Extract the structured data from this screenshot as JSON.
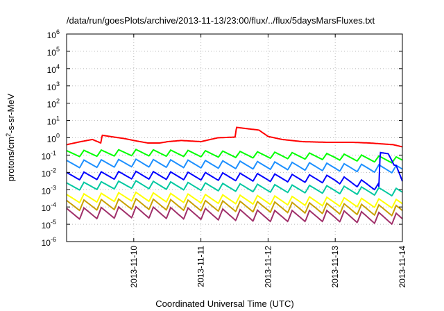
{
  "chart_data": {
    "type": "line",
    "title": "/data/run/goesPlots/archive/2013-11-13/23:00/flux/../flux/5daysMarsFluxes.txt",
    "xlabel": "Coordinated Universal Time (UTC)",
    "ylabel_base": "protons/cm",
    "ylabel_sup": "2",
    "ylabel_rest": "-s-sr-MeV",
    "y_scale": "log",
    "ylim": [
      1e-06,
      1000000.0
    ],
    "xlim": [
      "2013-11-09T00:00",
      "2013-11-14T00:00"
    ],
    "grid": true,
    "y_ticks": [
      {
        "value": 1e-06,
        "base": "10",
        "exp": "-6"
      },
      {
        "value": 1e-05,
        "base": "10",
        "exp": "-5"
      },
      {
        "value": 0.0001,
        "base": "10",
        "exp": "-4"
      },
      {
        "value": 0.001,
        "base": "10",
        "exp": "-3"
      },
      {
        "value": 0.01,
        "base": "10",
        "exp": "-2"
      },
      {
        "value": 0.1,
        "base": "10",
        "exp": "-1"
      },
      {
        "value": 1.0,
        "base": "10",
        "exp": "0"
      },
      {
        "value": 10.0,
        "base": "10",
        "exp": "1"
      },
      {
        "value": 100.0,
        "base": "10",
        "exp": "2"
      },
      {
        "value": 1000.0,
        "base": "10",
        "exp": "3"
      },
      {
        "value": 10000.0,
        "base": "10",
        "exp": "4"
      },
      {
        "value": 100000.0,
        "base": "10",
        "exp": "5"
      },
      {
        "value": 1000000.0,
        "base": "10",
        "exp": "6"
      }
    ],
    "x_ticks": [
      {
        "value": "2013-11-10T00:00",
        "label": "2013-11-10"
      },
      {
        "value": "2013-11-11T00:00",
        "label": "2013-11-11"
      },
      {
        "value": "2013-11-12T00:00",
        "label": "2013-11-12"
      },
      {
        "value": "2013-11-13T00:00",
        "label": "2013-11-13"
      },
      {
        "value": "2013-11-14T00:00",
        "label": "2013-11-14"
      }
    ],
    "series": [
      {
        "color": "#ff0000",
        "x": [
          "2013-11-09T00:00",
          "2013-11-09T05:02",
          "2013-11-09T09:14",
          "2013-11-09T12:14",
          "2013-11-09T12:43",
          "2013-11-09T16:58",
          "2013-11-09T20:44",
          "2013-11-10T00:00",
          "2013-11-10T05:02",
          "2013-11-10T09:14",
          "2013-11-10T12:14",
          "2013-11-10T16:58",
          "2013-11-11T00:00",
          "2013-11-11T06:00",
          "2013-11-11T12:14",
          "2013-11-11T12:43",
          "2013-11-11T16:58",
          "2013-11-11T20:44",
          "2013-11-12T00:00",
          "2013-11-12T05:02",
          "2013-11-12T12:14",
          "2013-11-12T20:44",
          "2013-11-13T00:00",
          "2013-11-13T06:00",
          "2013-11-13T12:14",
          "2013-11-13T20:44",
          "2013-11-14T00:00"
        ],
        "values": [
          0.4,
          0.6,
          0.8,
          0.5,
          1.4,
          1.1,
          0.9,
          0.7,
          0.5,
          0.5,
          0.6,
          0.7,
          0.6,
          1.0,
          1.1,
          4.0,
          3.3,
          2.8,
          1.2,
          0.8,
          0.6,
          0.55,
          0.55,
          0.55,
          0.5,
          0.4,
          0.3
        ]
      },
      {
        "color": "#00ff00",
        "x": [
          "2013-11-09T00:00",
          "2013-11-10T00:00",
          "2013-11-11T00:00",
          "2013-11-12T00:00",
          "2013-11-13T00:00",
          "2013-11-14T00:00"
        ],
        "values": [
          0.12,
          0.14,
          0.12,
          0.1,
          0.08,
          0.05
        ]
      },
      {
        "color": "#1e90ff",
        "x": [
          "2013-11-09T00:00",
          "2013-11-10T00:00",
          "2013-11-11T00:00",
          "2013-11-12T00:00",
          "2013-11-13T00:00",
          "2013-11-14T00:00"
        ],
        "values": [
          0.03,
          0.035,
          0.03,
          0.025,
          0.02,
          0.015
        ]
      },
      {
        "color": "#0000ff",
        "x": [
          "2013-11-09T00:00",
          "2013-11-10T00:00",
          "2013-11-11T00:00",
          "2013-11-12T00:00",
          "2013-11-13T00:00",
          "2013-11-13T15:36",
          "2013-11-13T16:05",
          "2013-11-13T18:58",
          "2013-11-14T00:00"
        ],
        "values": [
          0.006,
          0.007,
          0.006,
          0.005,
          0.004,
          0.0015,
          0.14,
          0.12,
          0.003
        ]
      },
      {
        "color": "#00c8a0",
        "x": [
          "2013-11-09T00:00",
          "2013-11-10T00:00",
          "2013-11-11T00:00",
          "2013-11-12T00:00",
          "2013-11-13T00:00",
          "2013-11-14T00:00"
        ],
        "values": [
          0.0015,
          0.002,
          0.0015,
          0.0012,
          0.001,
          0.0007
        ]
      },
      {
        "color": "#ffff00",
        "x": [
          "2013-11-09T00:00",
          "2013-11-10T00:00",
          "2013-11-11T00:00",
          "2013-11-12T00:00",
          "2013-11-13T00:00",
          "2013-11-14T00:00"
        ],
        "values": [
          0.0003,
          0.0004,
          0.0003,
          0.00025,
          0.0002,
          0.00015
        ]
      },
      {
        "color": "#c8a000",
        "x": [
          "2013-11-09T00:00",
          "2013-11-10T00:00",
          "2013-11-11T00:00",
          "2013-11-12T00:00",
          "2013-11-13T00:00",
          "2013-11-14T00:00"
        ],
        "values": [
          0.00012,
          0.00015,
          0.00012,
          0.0001,
          8e-05,
          6e-05
        ]
      },
      {
        "color": "#a0306a",
        "x": [
          "2013-11-09T00:00",
          "2013-11-10T00:00",
          "2013-11-11T00:00",
          "2013-11-12T00:00",
          "2013-11-13T00:00",
          "2013-11-14T00:00"
        ],
        "values": [
          4e-05,
          5e-05,
          4e-05,
          3e-05,
          3e-05,
          2e-05
        ]
      }
    ]
  }
}
